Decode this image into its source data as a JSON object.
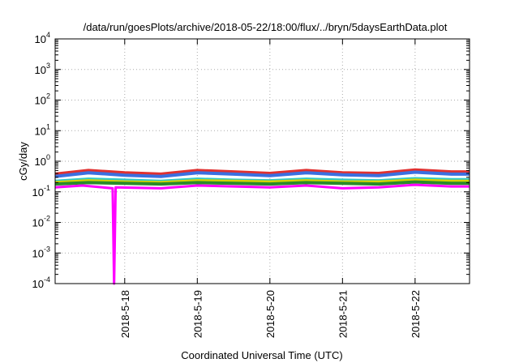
{
  "chart_data": {
    "type": "line",
    "title": "/data/run/goesPlots/archive/2018-05-22/18:00/flux/../bryn/5daysEarthData.plot",
    "xlabel": "Coordinated Universal Time (UTC)",
    "ylabel": "cGy/day",
    "y_scale": "log",
    "ylim": [
      0.0001,
      10000
    ],
    "xlim": [
      "2018-05-17 01:00",
      "2018-05-22 18:00"
    ],
    "grid": true,
    "legend": "none",
    "x_ticks": [
      "2018-5-18",
      "2018-5-19",
      "2018-5-20",
      "2018-5-21",
      "2018-5-22"
    ],
    "y_ticks": [
      {
        "base": "10",
        "exp": "-4",
        "value": 0.0001
      },
      {
        "base": "10",
        "exp": "-3",
        "value": 0.001
      },
      {
        "base": "10",
        "exp": "-2",
        "value": 0.01
      },
      {
        "base": "10",
        "exp": "-1",
        "value": 0.1
      },
      {
        "base": "10",
        "exp": "0",
        "value": 1
      },
      {
        "base": "10",
        "exp": "1",
        "value": 10
      },
      {
        "base": "10",
        "exp": "2",
        "value": 100
      },
      {
        "base": "10",
        "exp": "3",
        "value": 1000
      },
      {
        "base": "10",
        "exp": "4",
        "value": 10000
      }
    ],
    "series": [
      {
        "color": "#e03030",
        "x": [
          "2018-05-17 01:00",
          "2018-05-17 12:00",
          "2018-05-18 00:00",
          "2018-05-18 12:00",
          "2018-05-19 00:00",
          "2018-05-19 12:00",
          "2018-05-20 00:00",
          "2018-05-20 12:00",
          "2018-05-21 00:00",
          "2018-05-21 12:00",
          "2018-05-22 00:00",
          "2018-05-22 12:00",
          "2018-05-22 18:00"
        ],
        "y": [
          0.38,
          0.5,
          0.42,
          0.38,
          0.5,
          0.45,
          0.4,
          0.5,
          0.42,
          0.4,
          0.52,
          0.45,
          0.45
        ]
      },
      {
        "color": "#3a6fe0",
        "x": [
          "2018-05-17 01:00",
          "2018-05-17 12:00",
          "2018-05-18 00:00",
          "2018-05-18 12:00",
          "2018-05-19 00:00",
          "2018-05-19 12:00",
          "2018-05-20 00:00",
          "2018-05-20 12:00",
          "2018-05-21 00:00",
          "2018-05-21 12:00",
          "2018-05-22 00:00",
          "2018-05-22 12:00",
          "2018-05-22 18:00"
        ],
        "y": [
          0.32,
          0.42,
          0.35,
          0.32,
          0.42,
          0.38,
          0.34,
          0.42,
          0.36,
          0.34,
          0.44,
          0.38,
          0.38
        ]
      },
      {
        "color": "#30c8c8",
        "x": [
          "2018-05-17 01:00",
          "2018-05-17 12:00",
          "2018-05-18 00:00",
          "2018-05-18 12:00",
          "2018-05-19 00:00",
          "2018-05-19 12:00",
          "2018-05-20 00:00",
          "2018-05-20 12:00",
          "2018-05-21 00:00",
          "2018-05-21 12:00",
          "2018-05-22 00:00",
          "2018-05-22 12:00",
          "2018-05-22 18:00"
        ],
        "y": [
          0.22,
          0.26,
          0.24,
          0.22,
          0.26,
          0.24,
          0.23,
          0.26,
          0.24,
          0.23,
          0.27,
          0.25,
          0.25
        ]
      },
      {
        "color": "#d4d400",
        "x": [
          "2018-05-17 01:00",
          "2018-05-17 12:00",
          "2018-05-18 00:00",
          "2018-05-18 12:00",
          "2018-05-19 00:00",
          "2018-05-19 12:00",
          "2018-05-20 00:00",
          "2018-05-20 12:00",
          "2018-05-21 00:00",
          "2018-05-21 12:00",
          "2018-05-22 00:00",
          "2018-05-22 12:00",
          "2018-05-22 18:00"
        ],
        "y": [
          0.2,
          0.23,
          0.21,
          0.2,
          0.23,
          0.22,
          0.21,
          0.23,
          0.21,
          0.21,
          0.24,
          0.22,
          0.22
        ]
      },
      {
        "color": "#2a8a2a",
        "x": [
          "2018-05-17 01:00",
          "2018-05-17 12:00",
          "2018-05-18 00:00",
          "2018-05-18 12:00",
          "2018-05-19 00:00",
          "2018-05-19 12:00",
          "2018-05-20 00:00",
          "2018-05-20 12:00",
          "2018-05-21 00:00",
          "2018-05-21 12:00",
          "2018-05-22 00:00",
          "2018-05-22 12:00",
          "2018-05-22 18:00"
        ],
        "y": [
          0.18,
          0.2,
          0.19,
          0.18,
          0.2,
          0.19,
          0.18,
          0.2,
          0.19,
          0.18,
          0.21,
          0.19,
          0.19
        ]
      },
      {
        "color": "#ff00ff",
        "x": [
          "2018-05-17 01:00",
          "2018-05-17 10:00",
          "2018-05-17 20:00",
          "2018-05-17 20:30",
          "2018-05-17 21:00",
          "2018-05-18 12:00",
          "2018-05-19 00:00",
          "2018-05-19 12:00",
          "2018-05-20 00:00",
          "2018-05-20 12:00",
          "2018-05-21 00:00",
          "2018-05-21 12:00",
          "2018-05-22 00:00",
          "2018-05-22 12:00",
          "2018-05-22 18:00"
        ],
        "y": [
          0.14,
          0.16,
          0.13,
          0.0001,
          0.14,
          0.13,
          0.16,
          0.15,
          0.14,
          0.16,
          0.13,
          0.14,
          0.17,
          0.15,
          0.15
        ]
      }
    ]
  }
}
